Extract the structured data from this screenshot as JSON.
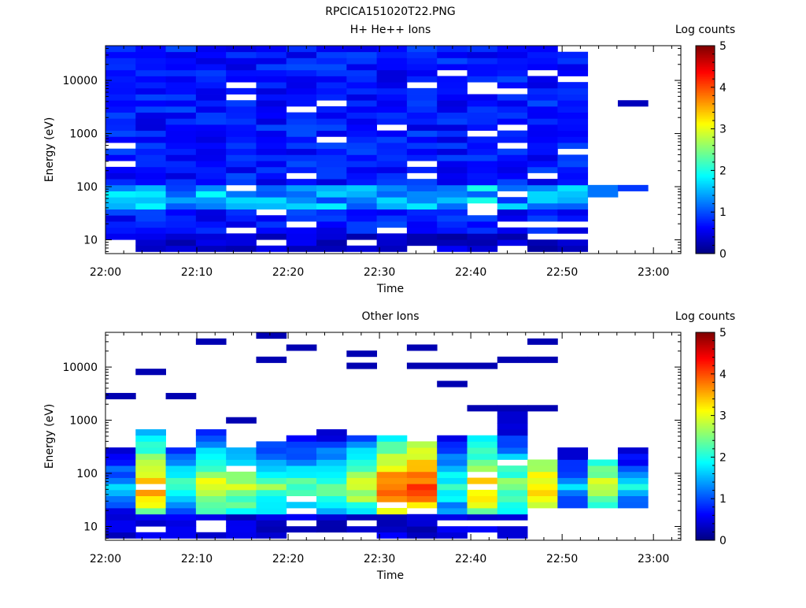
{
  "figure": {
    "title": "RPCICA151020T22.PNG"
  },
  "colormap": {
    "stops": [
      "#00007f",
      "#0000ff",
      "#007fff",
      "#00ffff",
      "#7fff7f",
      "#ffff00",
      "#ff7f00",
      "#ff0000",
      "#7f0000"
    ],
    "range": [
      0,
      5
    ]
  },
  "chart_data": [
    {
      "type": "heatmap",
      "title": "H+ He++ Ions",
      "xlabel": "Time",
      "ylabel": "Energy (eV)",
      "x_ticks": [
        "22:00",
        "22:10",
        "22:20",
        "22:30",
        "22:40",
        "22:50",
        "23:00"
      ],
      "x_range_minutes": [
        0,
        63
      ],
      "y_scale": "log",
      "ylim": [
        5.5,
        45000
      ],
      "y_ticks": [
        10,
        100,
        1000,
        10000
      ],
      "y_tick_labels": [
        "10",
        "100",
        "1000",
        "10000"
      ],
      "colorbar": {
        "label": "Log counts",
        "range": [
          0,
          5
        ],
        "tick_labels": [
          "0",
          "1",
          "2",
          "3",
          "4",
          "5"
        ]
      },
      "time_bins_minutes": [
        [
          0,
          3.3
        ],
        [
          3.3,
          6.6
        ],
        [
          6.6,
          9.9
        ],
        [
          9.9,
          13.2
        ],
        [
          13.2,
          16.5
        ],
        [
          16.5,
          19.8
        ],
        [
          19.8,
          23.1
        ],
        [
          23.1,
          26.4
        ],
        [
          26.4,
          29.7
        ],
        [
          29.7,
          33.0
        ],
        [
          33.0,
          36.3
        ],
        [
          36.3,
          39.6
        ],
        [
          39.6,
          42.9
        ],
        [
          42.9,
          46.2
        ],
        [
          46.2,
          49.5
        ],
        [
          49.5,
          52.8
        ],
        [
          52.8,
          56.1
        ],
        [
          56.1,
          59.4
        ]
      ],
      "energy_bins_eV": [
        6,
        7.8,
        10.1,
        13.2,
        17.1,
        22.3,
        29,
        37.7,
        49,
        63.7,
        82.8,
        107.7,
        140,
        182,
        236,
        307,
        400,
        520,
        675,
        878,
        1141,
        1483,
        1928,
        2507,
        3259,
        4237,
        5508,
        7160,
        9308,
        12101,
        15731,
        20450,
        26586,
        34561,
        44930
      ],
      "grid": false
    },
    {
      "type": "heatmap",
      "title": "Other Ions",
      "xlabel": "Time",
      "ylabel": "Energy (eV)",
      "x_ticks": [
        "22:00",
        "22:10",
        "22:20",
        "22:30",
        "22:40",
        "22:50",
        "23:00"
      ],
      "x_range_minutes": [
        0,
        63
      ],
      "y_scale": "log",
      "ylim": [
        5.5,
        45000
      ],
      "y_ticks": [
        10,
        100,
        1000,
        10000
      ],
      "y_tick_labels": [
        "10",
        "100",
        "1000",
        "10000"
      ],
      "colorbar": {
        "label": "Log counts",
        "range": [
          0,
          5
        ],
        "tick_labels": [
          "0",
          "1",
          "2",
          "3",
          "4",
          "5"
        ]
      },
      "time_bins_minutes": [
        [
          0,
          3.3
        ],
        [
          3.3,
          6.6
        ],
        [
          6.6,
          9.9
        ],
        [
          9.9,
          13.2
        ],
        [
          13.2,
          16.5
        ],
        [
          16.5,
          19.8
        ],
        [
          19.8,
          23.1
        ],
        [
          23.1,
          26.4
        ],
        [
          26.4,
          29.7
        ],
        [
          29.7,
          33.0
        ],
        [
          33.0,
          36.3
        ],
        [
          36.3,
          39.6
        ],
        [
          39.6,
          42.9
        ],
        [
          42.9,
          46.2
        ],
        [
          46.2,
          49.5
        ],
        [
          49.5,
          52.8
        ],
        [
          52.8,
          56.1
        ],
        [
          56.1,
          59.4
        ]
      ],
      "energy_bins_eV": [
        6,
        7.8,
        10.1,
        13.2,
        17.1,
        22.3,
        29,
        37.7,
        49,
        63.7,
        82.8,
        107.7,
        140,
        182,
        236,
        307,
        400,
        520,
        675,
        878,
        1141,
        1483,
        1928,
        2507,
        3259,
        4237,
        5508,
        7160,
        9308,
        12101,
        15731,
        20450,
        26586,
        34561,
        44930
      ],
      "grid": false
    }
  ]
}
